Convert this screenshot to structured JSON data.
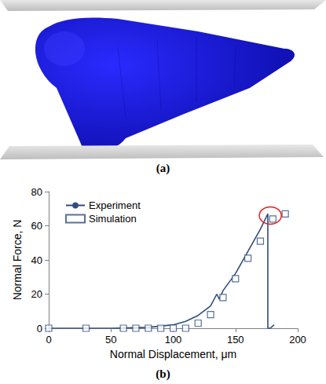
{
  "figure": {
    "panel_a_label": "(a)",
    "panel_b_label": "(b)"
  },
  "chart_data": {
    "type": "line",
    "x_label": "Normal Displacement, μm",
    "y_label": "Normal Force, N",
    "xlim": [
      0,
      200
    ],
    "xticks": [
      0,
      50,
      100,
      150,
      200
    ],
    "ylim": [
      0,
      80
    ],
    "yticks": [
      0,
      20,
      40,
      60,
      80
    ],
    "grid": false,
    "legend": "upper left",
    "series": [
      {
        "name": "Experiment",
        "type": "line",
        "color": "#2f4d7e",
        "line_style": "solid",
        "x": [
          0,
          20,
          50,
          80,
          100,
          110,
          120,
          130,
          135,
          137,
          140,
          150,
          160,
          170,
          176,
          176,
          178,
          181
        ],
        "values": [
          0,
          0,
          0,
          0.5,
          2,
          4,
          7.5,
          13,
          20,
          17,
          22,
          32,
          45,
          58,
          67,
          0,
          0,
          2
        ]
      },
      {
        "name": "Simulation",
        "type": "scatter",
        "color": "#2f4d7e",
        "marker": "square",
        "x": [
          0,
          30,
          60,
          70,
          80,
          90,
          100,
          110,
          120,
          130,
          140,
          150,
          160,
          170,
          180,
          190
        ],
        "values": [
          0,
          0,
          0,
          0,
          0,
          0,
          0,
          0,
          3,
          8,
          18,
          29,
          41,
          51,
          64,
          67
        ]
      }
    ],
    "annotations": [
      {
        "shape": "circle",
        "x": 178,
        "y": 66,
        "color": "#e02020"
      }
    ]
  }
}
